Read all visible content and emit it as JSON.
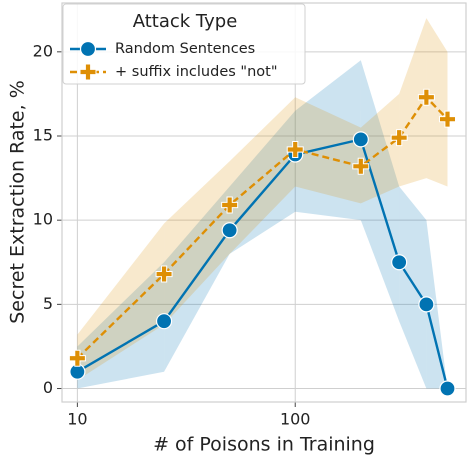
{
  "chart_data": {
    "type": "line",
    "xlabel": "# of Poisons in Training",
    "ylabel": "Secret Extraction Rate, %",
    "xscale": "log",
    "x": [
      10,
      25,
      50,
      100,
      200,
      300,
      400,
      500
    ],
    "series": [
      {
        "name": "Random Sentences",
        "color": "#0173b2",
        "marker": "circle",
        "dashed": false,
        "values": [
          1.0,
          4.0,
          9.4,
          13.9,
          14.8,
          7.5,
          5.0,
          0.0
        ],
        "lower": [
          0.0,
          1.0,
          8.0,
          10.5,
          10.0,
          4.0,
          0.0,
          0.0
        ],
        "upper": [
          2.5,
          7.5,
          12.0,
          16.5,
          19.5,
          12.0,
          10.0,
          0.0
        ]
      },
      {
        "name": "+ suffix includes \"not\"",
        "color": "#de8f05",
        "marker": "plus",
        "dashed": true,
        "values": [
          1.8,
          6.8,
          10.9,
          14.2,
          13.2,
          14.9,
          17.3,
          16.0
        ],
        "lower": [
          0.5,
          3.8,
          8.0,
          12.0,
          11.0,
          12.0,
          12.5,
          12.0
        ],
        "upper": [
          3.2,
          9.8,
          13.5,
          17.3,
          15.5,
          17.5,
          22.0,
          20.0
        ]
      }
    ],
    "legend_title": "Attack Type",
    "legend": "upper left",
    "grid": true,
    "xlim": [
      8.5,
      608
    ],
    "xticks": [
      10,
      100
    ],
    "ylim": [
      -0.8,
      22.9
    ],
    "yticks": [
      0,
      5,
      10,
      15,
      20
    ]
  }
}
